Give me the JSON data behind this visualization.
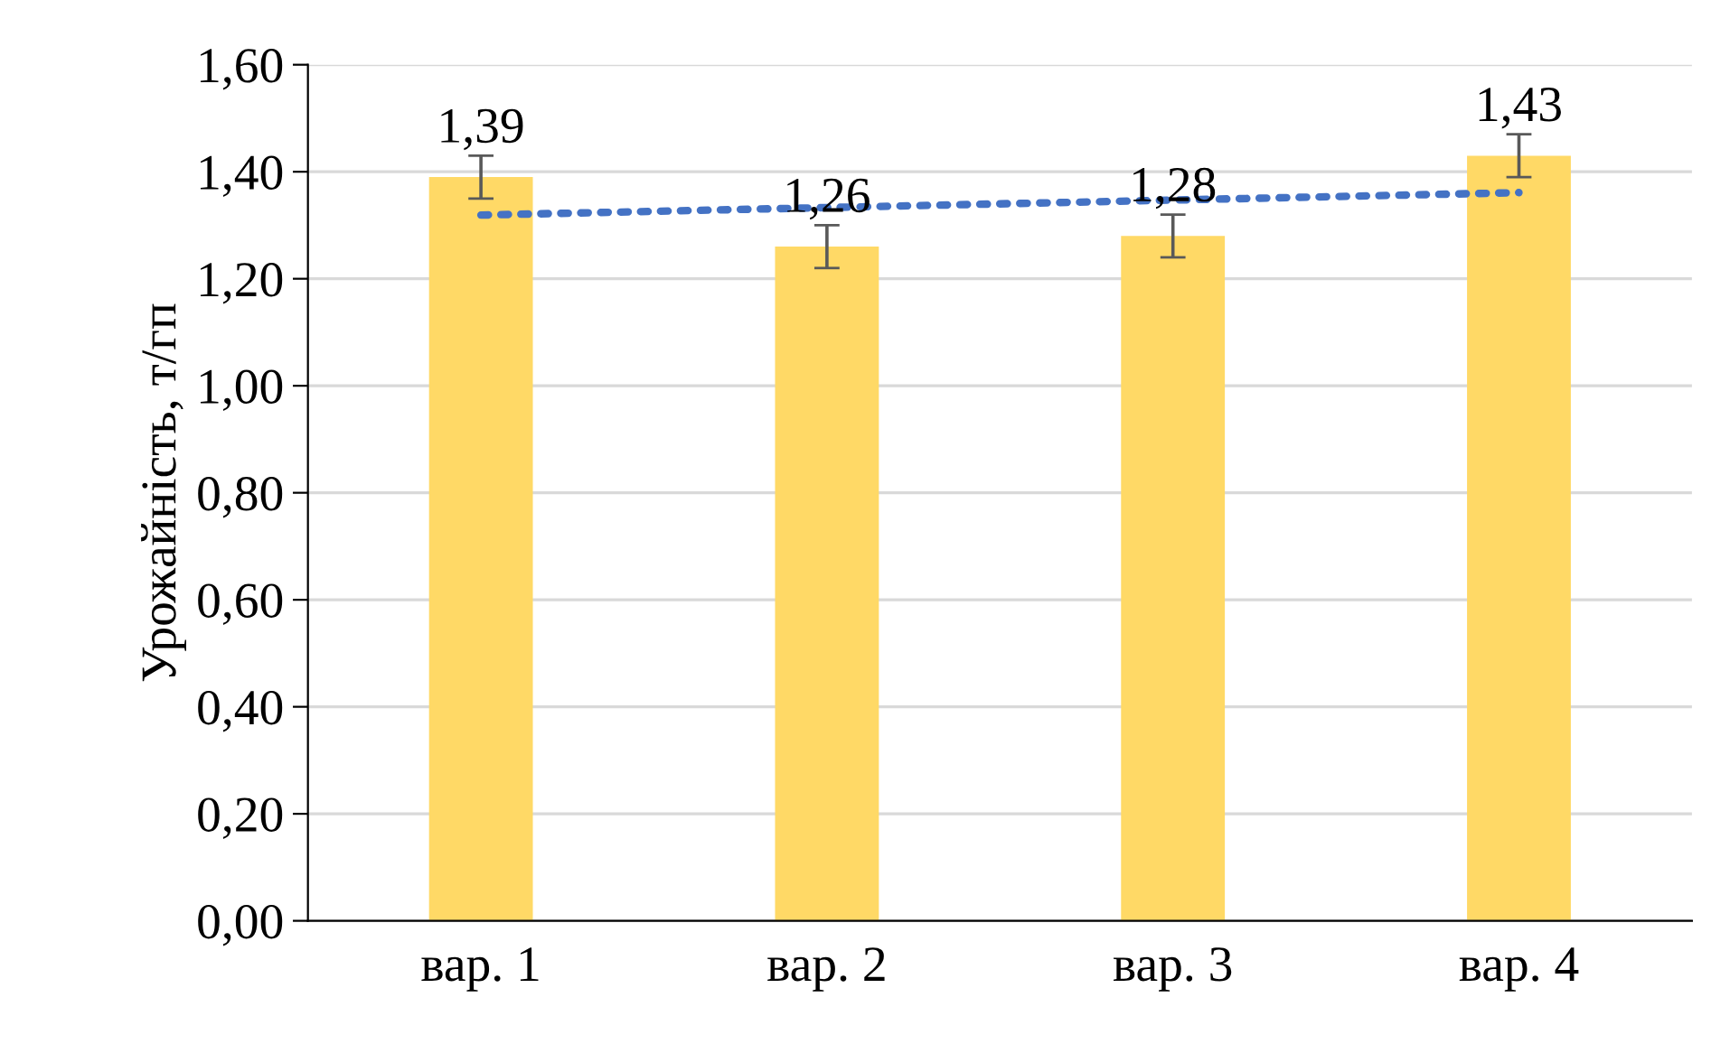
{
  "chart_data": {
    "type": "bar",
    "ylabel": "Урожайність, т/гп",
    "categories": [
      "вар. 1",
      "вар. 2",
      "вар. 3",
      "вар. 4"
    ],
    "series": [
      {
        "color": "#ffd966",
        "values": [
          1.39,
          1.26,
          1.28,
          1.43
        ],
        "errors": [
          0.04,
          0.04,
          0.04,
          0.04
        ],
        "value_labels": [
          "1,39",
          "1,26",
          "1,28",
          "1,43"
        ]
      },
      {
        "type": "line",
        "color": "#4472c4",
        "line_style": "dotted",
        "values": [
          1.319,
          1.333,
          1.347,
          1.361
        ]
      }
    ],
    "ylim": [
      0,
      1.6
    ],
    "yticks": [
      {
        "value": 0,
        "label": "0,00"
      },
      {
        "value": 0.2,
        "label": "0,20"
      },
      {
        "value": 0.4,
        "label": "0,40"
      },
      {
        "value": 0.6,
        "label": "0,60"
      },
      {
        "value": 0.8,
        "label": "0,80"
      },
      {
        "value": 1.0,
        "label": "1,00"
      },
      {
        "value": 1.2,
        "label": "1,20"
      },
      {
        "value": 1.4,
        "label": "1,40"
      },
      {
        "value": 1.6,
        "label": "1,60"
      }
    ],
    "grid": "y",
    "legend": false
  }
}
